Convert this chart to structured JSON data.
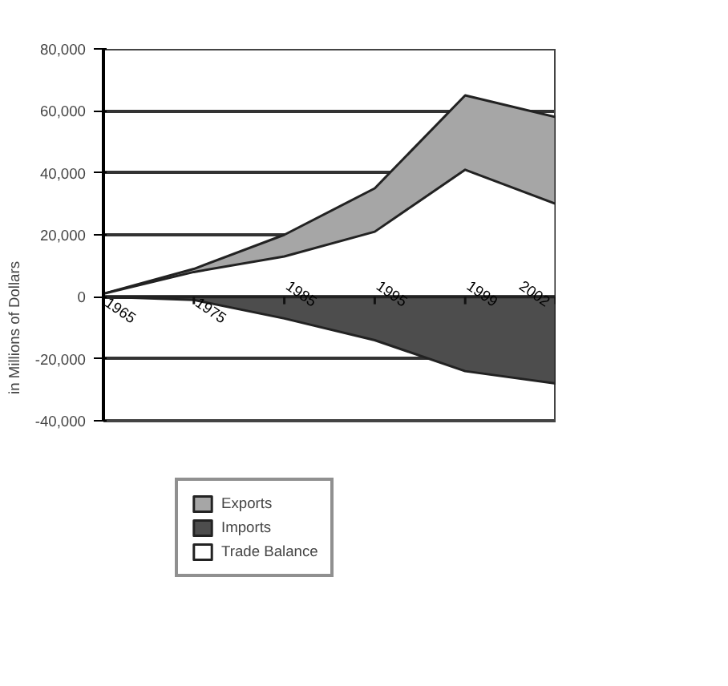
{
  "chart_data": {
    "type": "area",
    "ylabel": "in Millions of Dollars",
    "categories": [
      "1965",
      "1975",
      "1985",
      "1995",
      "1999",
      "2002"
    ],
    "series": [
      {
        "name": "Exports",
        "color": "#a6a6a6",
        "values": [
          1000,
          9000,
          20000,
          35000,
          65000,
          58000
        ]
      },
      {
        "name": "Imports",
        "color": "#4d4d4d",
        "values": [
          0,
          -1000,
          -7000,
          -14000,
          -24000,
          -28000
        ]
      },
      {
        "name": "Trade Balance",
        "color": "#ffffff",
        "values": [
          1000,
          8000,
          13000,
          21000,
          41000,
          30000
        ]
      }
    ],
    "ylim": [
      -40000,
      80000
    ],
    "yticks": [
      {
        "value": -40000,
        "label": "-40,000"
      },
      {
        "value": -20000,
        "label": "-20,000"
      },
      0,
      {
        "value": 20000,
        "label": "20,000"
      },
      {
        "value": 40000,
        "label": "40,000"
      },
      {
        "value": 60000,
        "label": "60,000"
      },
      {
        "value": 80000,
        "label": "80,000"
      }
    ],
    "grid": "y",
    "legend": "bottom"
  }
}
